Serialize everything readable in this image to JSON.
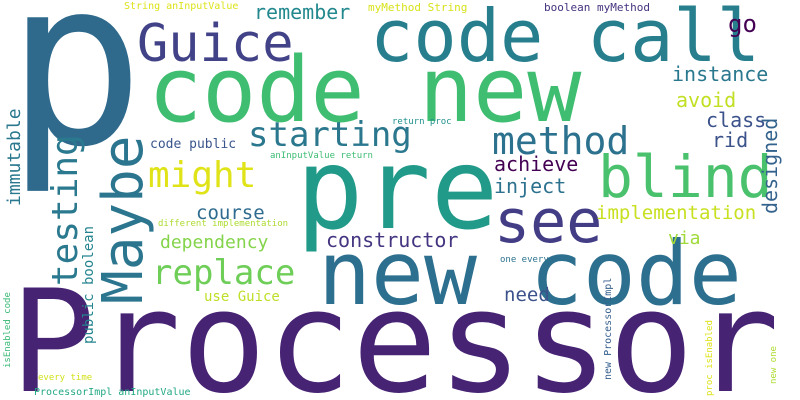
{
  "words": [
    {
      "text": "Processor",
      "color": "#472374"
    },
    {
      "text": "p",
      "color": "#2f6a8d"
    },
    {
      "text": "code new",
      "color": "#3fbd70"
    },
    {
      "text": "new code",
      "color": "#2d6f8e"
    },
    {
      "text": "pre",
      "color": "#219a89"
    },
    {
      "text": "code call",
      "color": "#277f8e"
    },
    {
      "text": "blind",
      "color": "#4ac16d"
    },
    {
      "text": "Maybe",
      "color": "#2b768e"
    },
    {
      "text": "Guice",
      "color": "#414287"
    },
    {
      "text": "see",
      "color": "#423d84"
    },
    {
      "text": "method",
      "color": "#2c728e"
    },
    {
      "text": "might",
      "color": "#dfe318"
    },
    {
      "text": "starting",
      "color": "#2a778e"
    },
    {
      "text": "replace",
      "color": "#6ece58"
    },
    {
      "text": "testing",
      "color": "#2a798e"
    },
    {
      "text": "implementation",
      "color": "#c8e020"
    },
    {
      "text": "constructor",
      "color": "#453581"
    },
    {
      "text": "remember",
      "color": "#23898e"
    },
    {
      "text": "instance",
      "color": "#2a788e"
    },
    {
      "text": "avoid",
      "color": "#c2df23"
    },
    {
      "text": "class",
      "color": "#3b528b"
    },
    {
      "text": "rid",
      "color": "#3b528b"
    },
    {
      "text": "designed",
      "color": "#33638d"
    },
    {
      "text": "achieve",
      "color": "#440154"
    },
    {
      "text": "inject",
      "color": "#2c728e"
    },
    {
      "text": "go",
      "color": "#440154"
    },
    {
      "text": "course",
      "color": "#2f6b8e"
    },
    {
      "text": "dependency",
      "color": "#84d44b"
    },
    {
      "text": "via",
      "color": "#a0da39"
    },
    {
      "text": "need",
      "color": "#3b528b"
    },
    {
      "text": "immutable",
      "color": "#2a788e"
    },
    {
      "text": "use Guice",
      "color": "#bddf26"
    },
    {
      "text": "public boolean",
      "color": "#25848e"
    },
    {
      "text": "code public",
      "color": "#39558c"
    },
    {
      "text": "myMethod String",
      "color": "#d8e219"
    },
    {
      "text": "boolean myMethod",
      "color": "#46327e"
    },
    {
      "text": "String anInputValue",
      "color": "#dde318"
    },
    {
      "text": "return proc",
      "color": "#21918c"
    },
    {
      "text": "anInputValue return",
      "color": "#3dbc74"
    },
    {
      "text": "different implementation",
      "color": "#addc30"
    },
    {
      "text": "isEnabled code",
      "color": "#3aba76"
    },
    {
      "text": "one every",
      "color": "#2c728e"
    },
    {
      "text": "new ProcessorImpl",
      "color": "#355f8d"
    },
    {
      "text": "proc isEnabled",
      "color": "#dde318"
    },
    {
      "text": "new one",
      "color": "#addc30"
    },
    {
      "text": "every time",
      "color": "#d2e21b"
    },
    {
      "text": "ProcessorImpl anInputValue",
      "color": "#22a884"
    }
  ]
}
